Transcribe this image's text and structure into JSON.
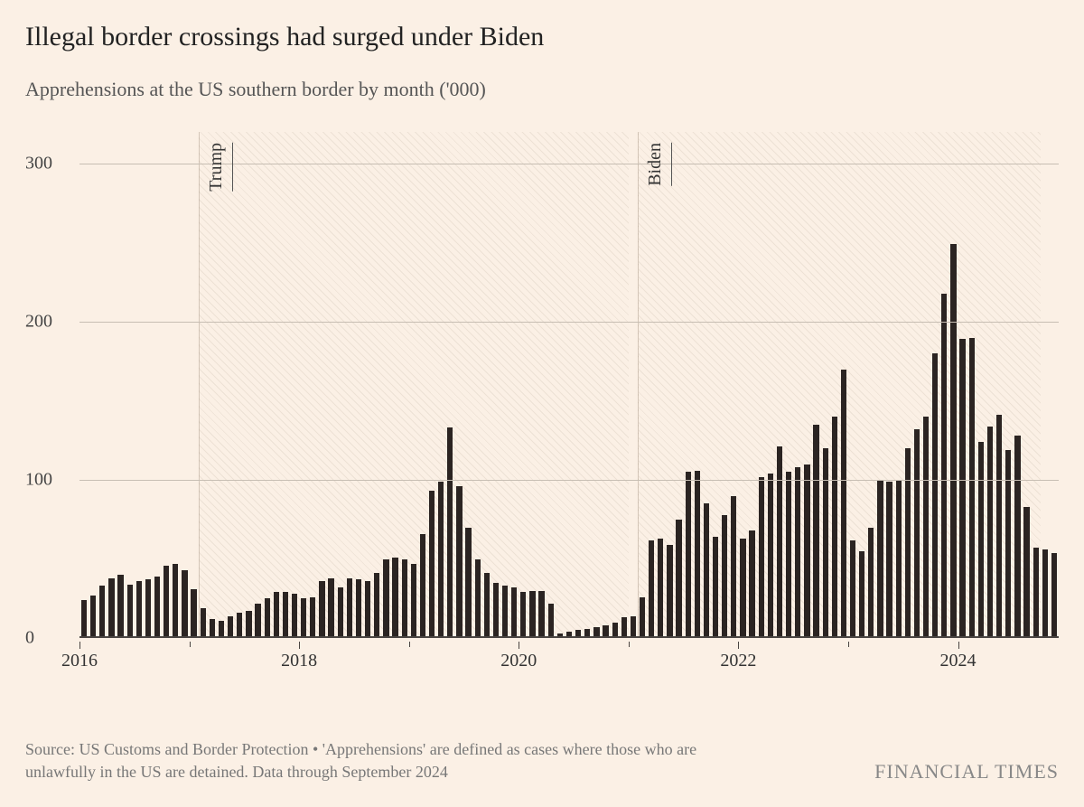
{
  "title": "Illegal border crossings had surged under Biden",
  "subtitle": "Apprehensions at the US southern border by month ('000)",
  "source": "Source: US Customs and Border Protection • 'Apprehensions' are defined as cases where those who are unlawfully in the US are detained. Data through September 2024",
  "brand": "FINANCIAL TIMES",
  "chart": {
    "type": "bar",
    "background_color": "#fbf0e5",
    "bar_color": "#2b2422",
    "grid_color": "#c7beb3",
    "baseline_color": "#4a4542",
    "title_fontsize": 30,
    "subtitle_fontsize": 22,
    "axis_fontsize": 20,
    "ylim": [
      0,
      320
    ],
    "yticks": [
      0,
      100,
      200,
      300
    ],
    "x_start_year": 2016,
    "x_end_date": "2024-09",
    "x_major_ticks": [
      2016,
      2018,
      2020,
      2022,
      2024
    ],
    "bar_width_ratio": 0.62,
    "regions": [
      {
        "label": "Trump",
        "start_month_index": 13,
        "end_month_index": 60
      },
      {
        "label": "Biden",
        "start_month_index": 61,
        "end_month_index": 105
      }
    ],
    "values": [
      24,
      27,
      33,
      38,
      40,
      34,
      36,
      37,
      39,
      46,
      47,
      43,
      31,
      19,
      12,
      11,
      14,
      16,
      17,
      22,
      25,
      29,
      29,
      28,
      25,
      26,
      36,
      38,
      32,
      38,
      37,
      36,
      41,
      50,
      51,
      50,
      47,
      66,
      93,
      99,
      133,
      96,
      70,
      50,
      41,
      35,
      33,
      32,
      29,
      30,
      30,
      22,
      3,
      4,
      5,
      6,
      7,
      8,
      10,
      13,
      14,
      26,
      62,
      63,
      59,
      75,
      105,
      106,
      85,
      64,
      78,
      90,
      63,
      68,
      102,
      104,
      121,
      105,
      108,
      110,
      135,
      120,
      140,
      170,
      62,
      55,
      70,
      100,
      99,
      100,
      120,
      132,
      140,
      180,
      218,
      249,
      189,
      190,
      124,
      134,
      141,
      119,
      128,
      83,
      57,
      56,
      54
    ]
  }
}
